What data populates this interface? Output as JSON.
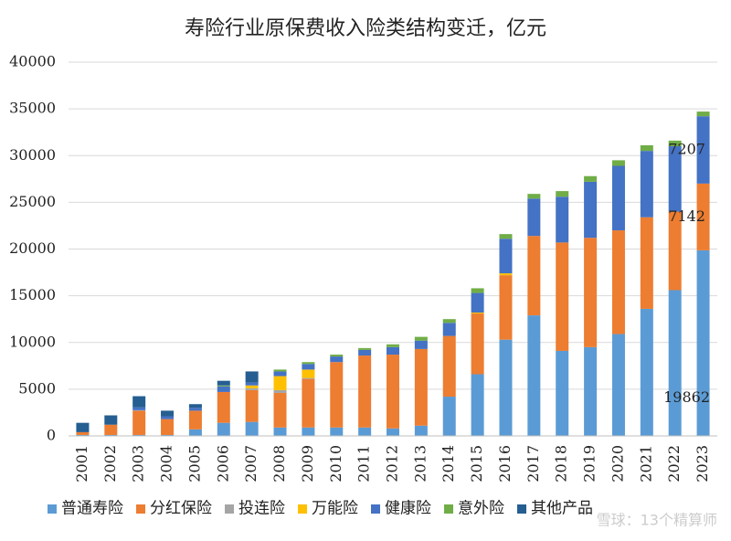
{
  "chart_data": {
    "type": "stacked_bar",
    "title": "寿险行业原保费收入险类结构变迁，亿元",
    "watermark": "雪球：13个精算师",
    "categories": [
      "2001",
      "2002",
      "2003",
      "2004",
      "2005",
      "2006",
      "2007",
      "2008",
      "2009",
      "2010",
      "2011",
      "2012",
      "2013",
      "2014",
      "2015",
      "2016",
      "2017",
      "2018",
      "2019",
      "2020",
      "2021",
      "2022",
      "2023"
    ],
    "ylim": [
      0,
      40000
    ],
    "yticks": [
      0,
      5000,
      10000,
      15000,
      20000,
      25000,
      30000,
      35000,
      40000
    ],
    "grid": true,
    "legend": "bottom",
    "series": [
      {
        "name": "普通寿险",
        "color": "#5b9bd5",
        "values": [
          100,
          100,
          100,
          100,
          700,
          1400,
          1500,
          900,
          900,
          900,
          900,
          800,
          1100,
          4200,
          6600,
          10300,
          12900,
          9100,
          9500,
          10900,
          13600,
          15600,
          19862
        ],
        "value_labels": [
          null,
          null,
          null,
          null,
          null,
          null,
          null,
          null,
          null,
          null,
          null,
          null,
          null,
          null,
          null,
          null,
          null,
          null,
          null,
          null,
          null,
          null,
          "19862"
        ]
      },
      {
        "name": "分红保险",
        "color": "#ed7d31",
        "values": [
          300,
          1100,
          2600,
          1700,
          2000,
          3300,
          3400,
          3700,
          5200,
          7000,
          7700,
          7900,
          8200,
          6500,
          6500,
          6900,
          8500,
          11600,
          11700,
          11100,
          9800,
          8400,
          7142
        ],
        "value_labels": [
          null,
          null,
          null,
          null,
          null,
          null,
          null,
          null,
          null,
          null,
          null,
          null,
          null,
          null,
          null,
          null,
          null,
          null,
          null,
          null,
          null,
          null,
          "7142"
        ]
      },
      {
        "name": "投连险",
        "color": "#a5a5a5",
        "values": [
          0,
          0,
          50,
          0,
          0,
          0,
          200,
          300,
          100,
          0,
          0,
          0,
          0,
          0,
          0,
          0,
          0,
          0,
          0,
          0,
          0,
          0,
          0
        ]
      },
      {
        "name": "万能险",
        "color": "#ffc000",
        "values": [
          0,
          0,
          0,
          0,
          0,
          0,
          300,
          1500,
          900,
          0,
          0,
          0,
          0,
          0,
          100,
          200,
          0,
          0,
          0,
          0,
          0,
          0,
          0
        ]
      },
      {
        "name": "健康险",
        "color": "#4472c4",
        "values": [
          0,
          0,
          300,
          300,
          300,
          600,
          300,
          500,
          600,
          600,
          600,
          800,
          900,
          1400,
          2100,
          3700,
          4000,
          4900,
          6000,
          6900,
          7100,
          7000,
          7207
        ],
        "value_labels": [
          null,
          null,
          null,
          null,
          null,
          null,
          null,
          null,
          null,
          null,
          null,
          null,
          null,
          null,
          null,
          null,
          null,
          null,
          null,
          null,
          null,
          null,
          "7207"
        ]
      },
      {
        "name": "意外险",
        "color": "#70ad47",
        "values": [
          0,
          0,
          0,
          0,
          0,
          100,
          0,
          200,
          200,
          200,
          200,
          300,
          400,
          400,
          500,
          500,
          500,
          600,
          600,
          600,
          600,
          600,
          500
        ]
      },
      {
        "name": "其他产品",
        "color": "#255e91",
        "values": [
          1000,
          1000,
          1200,
          600,
          400,
          500,
          1200,
          0,
          0,
          0,
          0,
          0,
          0,
          0,
          0,
          0,
          0,
          0,
          0,
          0,
          0,
          0,
          0
        ]
      }
    ]
  }
}
